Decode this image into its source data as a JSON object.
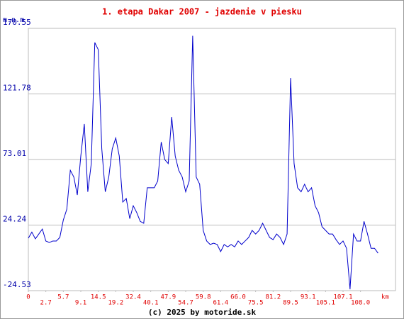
{
  "chart_data": {
    "type": "line",
    "title": "1. etapa Dakar 2007 - jazdenie v piesku",
    "y_label": "m.n.m",
    "x_label": "km",
    "footer": "(c) 2025 by motoride.sk",
    "color": "#0000cc",
    "values": [
      14.5,
      19,
      14,
      17.6,
      21.3,
      12.4,
      11.3,
      12.4,
      12.4,
      15,
      28,
      36,
      65,
      60,
      46.6,
      75.6,
      99.4,
      49,
      70,
      160,
      154.7,
      81,
      49,
      60,
      81,
      89,
      75.6,
      41.4,
      44,
      29,
      38.6,
      33.5,
      27,
      25.6,
      52,
      52,
      52,
      57,
      86,
      73,
      70,
      104.6,
      75.6,
      65,
      60,
      49,
      57,
      165,
      60,
      54.6,
      20.3,
      12.4,
      9.8,
      10.8,
      9.8,
      4.5,
      9.8,
      8,
      9.8,
      8,
      12.4,
      9.8,
      12.4,
      15,
      20.3,
      17.6,
      20.3,
      25.6,
      20.3,
      15,
      13.4,
      17.6,
      15,
      9.8,
      17.6,
      133.6,
      70,
      52,
      49,
      54.6,
      49,
      52,
      38.6,
      33.5,
      23,
      20.3,
      17.6,
      17.6,
      13.4,
      9.8,
      12.4,
      7,
      -23.5,
      17.6,
      12.4,
      12.4,
      27,
      17.6,
      7,
      7,
      3.4
    ],
    "ylim": [
      -24.53,
      170.55
    ],
    "yticks": [
      -24.53,
      24.24,
      73.01,
      121.78,
      170.55
    ],
    "xlim": [
      0,
      105
    ],
    "xticks": [
      {
        "value": 0,
        "label": "0"
      },
      {
        "value": 5,
        "label": "2.7"
      },
      {
        "value": 10,
        "label": "5.7"
      },
      {
        "value": 15,
        "label": "9.1"
      },
      {
        "value": 20,
        "label": "14.5"
      },
      {
        "value": 25,
        "label": "19.2"
      },
      {
        "value": 30,
        "label": "32.4"
      },
      {
        "value": 35,
        "label": "40.1"
      },
      {
        "value": 40,
        "label": "47.9"
      },
      {
        "value": 45,
        "label": "54.7"
      },
      {
        "value": 50,
        "label": "59.8"
      },
      {
        "value": 55,
        "label": "61.4"
      },
      {
        "value": 60,
        "label": "66.0"
      },
      {
        "value": 65,
        "label": "75.5"
      },
      {
        "value": 70,
        "label": "81.2"
      },
      {
        "value": 75,
        "label": "89.5"
      },
      {
        "value": 80,
        "label": "93.1"
      },
      {
        "value": 85,
        "label": "105.1"
      },
      {
        "value": 90,
        "label": "107.1"
      },
      {
        "value": 95,
        "label": "108.0"
      }
    ],
    "grid": true
  }
}
